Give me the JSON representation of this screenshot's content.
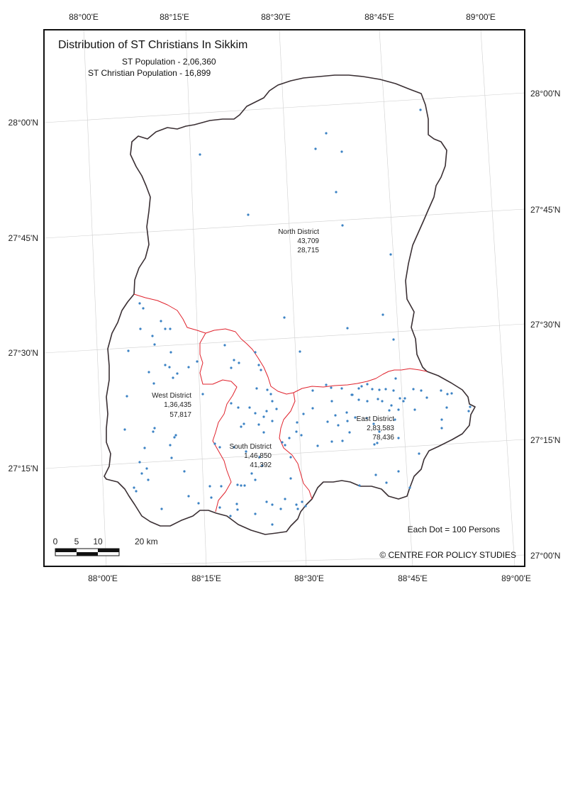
{
  "title": "Distribution of ST Christians In Sikkim",
  "subtitle_lines": [
    "ST Population - 2,06,360",
    "ST Christian Population - 16,899"
  ],
  "top_ticks": [
    "88°00'E",
    "88°15'E",
    "88°30'E",
    "88°45'E",
    "89°00'E"
  ],
  "bottom_ticks": [
    "88°00'E",
    "88°15'E",
    "88°30'E",
    "88°45'E",
    "89°00'E"
  ],
  "left_ticks": [
    "28°00'N",
    "27°45'N",
    "27°30'N",
    "27°15'N"
  ],
  "right_ticks": [
    "28°00'N",
    "27°45'N",
    "27°30'N",
    "27°15'N",
    "27°00'N"
  ],
  "districts": [
    {
      "name": "North  District",
      "population": "43,709",
      "christians": "28,715"
    },
    {
      "name": "West District",
      "population": "1,36,435",
      "christians": "57,817"
    },
    {
      "name": "South District",
      "population": "1,46,850",
      "christians": "41,392"
    },
    {
      "name": "East District",
      "population": "2,83,583",
      "christians": "78,436"
    }
  ],
  "legend": {
    "dot_value": "Each Dot = 100 Persons"
  },
  "scale_bar": {
    "labels": [
      "0",
      "5",
      "10",
      "20 km"
    ]
  },
  "credit": "© CENTRE FOR POLICY STUDIES",
  "colors": {
    "state_outline": "#3a2f33",
    "district_boundary": "#e0232d",
    "dot": "#3b82c4",
    "grid": "#cfcfcf"
  }
}
